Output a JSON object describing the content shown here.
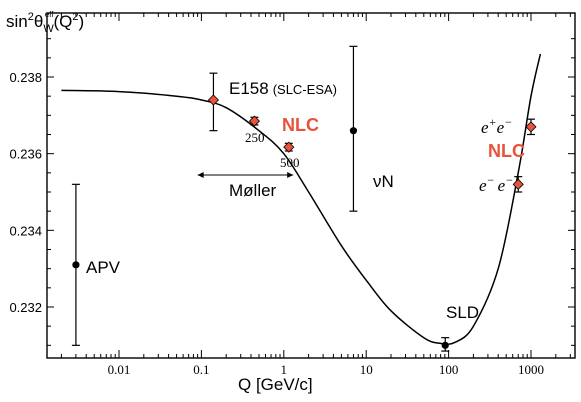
{
  "chart_data": {
    "type": "scatter",
    "title": "",
    "ylabel": "sin²θ_W^eff(Q²)",
    "xlabel": "Q [GeV/c]",
    "xscale": "log",
    "xlim": [
      0.0015,
      1500
    ],
    "ylim": [
      0.2308,
      0.2395
    ],
    "x_ticks": [
      "0.01",
      "0.1",
      "1",
      "10",
      "100",
      "1000"
    ],
    "y_ticks": [
      "0.232",
      "0.234",
      "0.236",
      "0.238"
    ],
    "curve": [
      [
        0.002,
        0.23765
      ],
      [
        0.01,
        0.23762
      ],
      [
        0.05,
        0.2375
      ],
      [
        0.1,
        0.2374
      ],
      [
        0.2,
        0.2372
      ],
      [
        0.5,
        0.2366
      ],
      [
        1,
        0.236
      ],
      [
        2,
        0.235
      ],
      [
        5,
        0.2336
      ],
      [
        10,
        0.2327
      ],
      [
        20,
        0.2319
      ],
      [
        50,
        0.2312
      ],
      [
        80,
        0.23105
      ],
      [
        120,
        0.23108
      ],
      [
        200,
        0.2315
      ],
      [
        400,
        0.233
      ],
      [
        700,
        0.2355
      ],
      [
        1000,
        0.2375
      ],
      [
        1300,
        0.2386
      ]
    ],
    "points": [
      {
        "name": "APV",
        "x": 0.003,
        "y": 0.2331,
        "yerr": [
          0.231,
          0.2352
        ],
        "marker": "black"
      },
      {
        "name": "E158",
        "x": 0.14,
        "y": 0.2374,
        "yerr": [
          0.2366,
          0.2381
        ],
        "marker": "orange"
      },
      {
        "name": "NLC 250",
        "x": 0.44,
        "y": 0.23685,
        "yerr": [
          0.23675,
          0.23695
        ],
        "marker": "orange"
      },
      {
        "name": "NLC 500",
        "x": 1.15,
        "y": 0.23617,
        "yerr": [
          0.23607,
          0.23627
        ],
        "marker": "orange"
      },
      {
        "name": "νN",
        "x": 7,
        "y": 0.2366,
        "yerr": [
          0.2345,
          0.2388
        ],
        "marker": "black"
      },
      {
        "name": "SLD",
        "x": 91,
        "y": 0.231,
        "yerr": [
          0.23085,
          0.2312
        ],
        "marker": "black"
      },
      {
        "name": "e-e-",
        "x": 700,
        "y": 0.2352,
        "yerr": [
          0.235,
          0.2354
        ],
        "marker": "orange"
      },
      {
        "name": "e+e-",
        "x": 1000,
        "y": 0.2367,
        "yerr": [
          0.2365,
          0.2369
        ],
        "marker": "orange"
      }
    ],
    "moller_range": [
      0.09,
      1.3
    ]
  },
  "labels": {
    "ylabel_main": "sin",
    "ylabel_sup": "2",
    "ylabel_theta": "θ",
    "ylabel_sub": "W",
    "ylabel_supsub": "eff",
    "ylabel_tail": "(Q",
    "ylabel_tail_sup": "2",
    "ylabel_close": ")",
    "xlabel": "Q [GeV/c]",
    "e158": "E158",
    "e158_sub": "(SLC-ESA)",
    "nlc_left": "NLC",
    "n250": "250",
    "n500": "500",
    "moller": "Møller",
    "nuN": "νN",
    "apv": "APV",
    "sld": "SLD",
    "nlc_right": "NLC",
    "epem_e": "e",
    "epem_plus": "+",
    "epem_e2": "e",
    "epem_minus": "−",
    "emem_e": "e",
    "emem_minus": "−",
    "emem_e2": "e",
    "emem_minus2": "−"
  },
  "colors": {
    "accent": "#e8533a",
    "ink": "#000000"
  }
}
